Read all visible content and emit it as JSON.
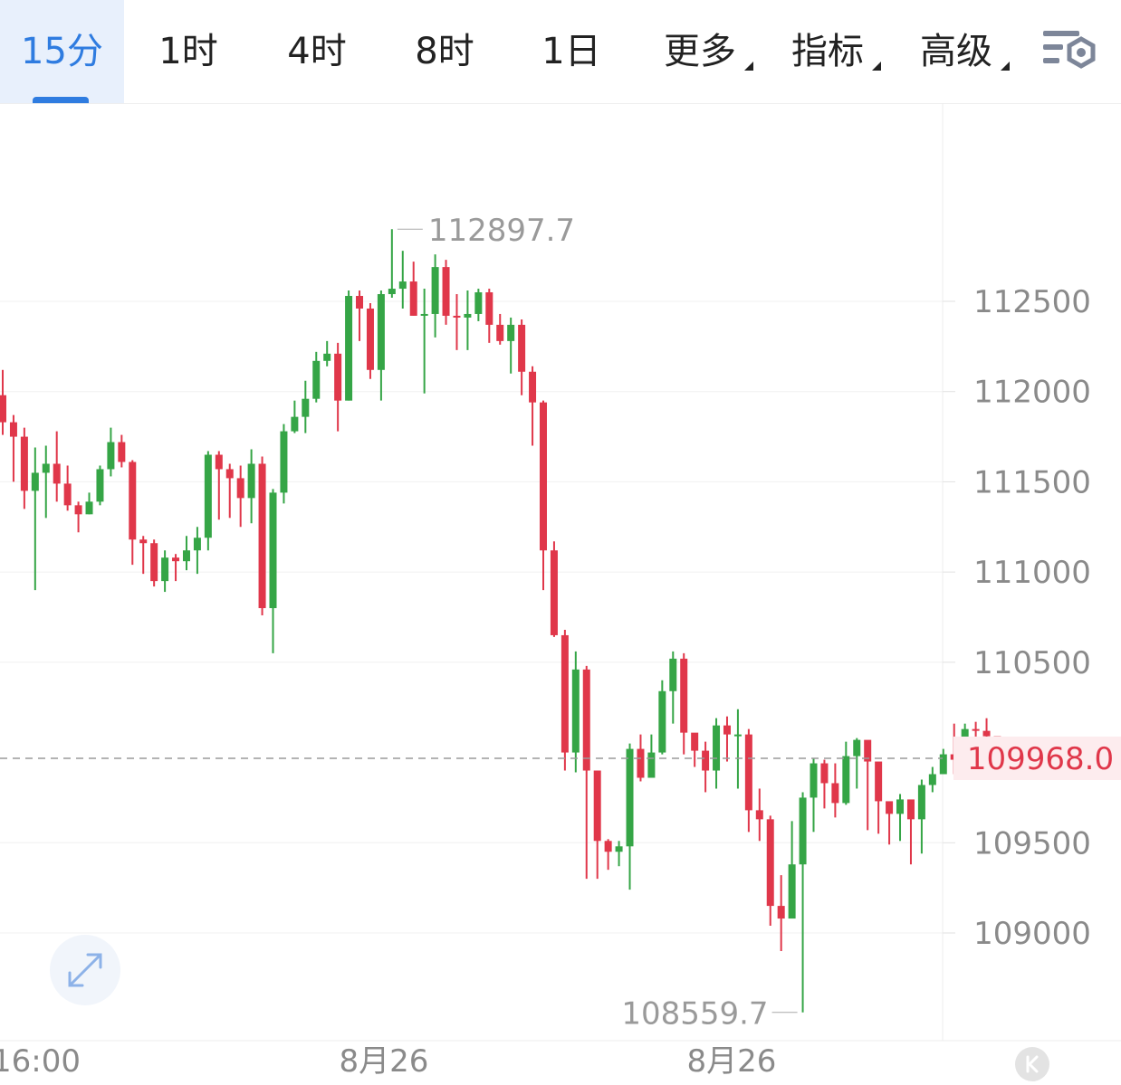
{
  "tabs": {
    "m15": "15分",
    "h1": "1时",
    "h4": "4时",
    "h8": "8时",
    "d1": "1日",
    "more": "更多",
    "indicators": "指标",
    "advanced": "高级"
  },
  "colors": {
    "up": "#35a546",
    "down": "#e0374a",
    "accent": "#2f7ce0",
    "last_price": "#e0374a"
  },
  "icons": {
    "settings": "chart-settings-icon",
    "expand": "expand-icon",
    "k_badge": "kline-badge-icon"
  },
  "chart_data": {
    "type": "candlestick",
    "interval": "15分",
    "yticks": [
      109000,
      109500,
      110000,
      110500,
      111000,
      111500,
      112000,
      112500
    ],
    "ytick_labels": [
      "109000",
      "109500",
      "110500",
      "111000",
      "111500",
      "112000",
      "112500"
    ],
    "ylim": [
      108400,
      113900
    ],
    "x_labels": [
      "16:00",
      "8月26",
      "8月26"
    ],
    "high_label": "112897.7",
    "low_label": "108559.7",
    "last_price": "109968.0",
    "candles": [
      [
        111980,
        111830,
        112120,
        111760
      ],
      [
        111830,
        111750,
        111870,
        111500
      ],
      [
        111750,
        111450,
        111800,
        111350
      ],
      [
        111450,
        111550,
        111690,
        110900
      ],
      [
        111550,
        111600,
        111700,
        111300
      ],
      [
        111600,
        111490,
        111780,
        111390
      ],
      [
        111490,
        111370,
        111590,
        111340
      ],
      [
        111370,
        111320,
        111390,
        111220
      ],
      [
        111320,
        111390,
        111440,
        111320
      ],
      [
        111390,
        111570,
        111590,
        111370
      ],
      [
        111570,
        111720,
        111800,
        111530
      ],
      [
        111720,
        111610,
        111760,
        111580
      ],
      [
        111610,
        111180,
        111620,
        111040
      ],
      [
        111180,
        111160,
        111200,
        110990
      ],
      [
        111160,
        110950,
        111180,
        110920
      ],
      [
        110950,
        111080,
        111120,
        110890
      ],
      [
        111080,
        111060,
        111100,
        110950
      ],
      [
        111060,
        111120,
        111200,
        111010
      ],
      [
        111120,
        111190,
        111250,
        110990
      ],
      [
        111190,
        111650,
        111670,
        111120
      ],
      [
        111650,
        111570,
        111670,
        111290
      ],
      [
        111570,
        111520,
        111600,
        111300
      ],
      [
        111520,
        111410,
        111590,
        111250
      ],
      [
        111410,
        111600,
        111680,
        111270
      ],
      [
        111600,
        110800,
        111640,
        110760
      ],
      [
        110800,
        111440,
        111460,
        110550
      ],
      [
        111440,
        111780,
        111820,
        111380
      ],
      [
        111780,
        111860,
        111950,
        111770
      ],
      [
        111860,
        111960,
        112060,
        111770
      ],
      [
        111960,
        112170,
        112220,
        111940
      ],
      [
        112170,
        112210,
        112280,
        112140
      ],
      [
        112210,
        111950,
        112270,
        111780
      ],
      [
        111950,
        112530,
        112560,
        111950
      ],
      [
        112530,
        112460,
        112560,
        112280
      ],
      [
        112460,
        112120,
        112490,
        112070
      ],
      [
        112120,
        112540,
        112560,
        111950
      ],
      [
        112540,
        112570,
        112900,
        112520
      ],
      [
        112570,
        112610,
        112780,
        112460
      ],
      [
        112610,
        112420,
        112720,
        112420
      ],
      [
        112420,
        112430,
        112570,
        111990
      ],
      [
        112430,
        112690,
        112760,
        112300
      ],
      [
        112690,
        112420,
        112730,
        112370
      ],
      [
        112420,
        112410,
        112540,
        112230
      ],
      [
        112410,
        112430,
        112560,
        112230
      ],
      [
        112430,
        112550,
        112570,
        112390
      ],
      [
        112550,
        112370,
        112570,
        112270
      ],
      [
        112370,
        112280,
        112430,
        112260
      ],
      [
        112280,
        112370,
        112410,
        112100
      ],
      [
        112370,
        112110,
        112400,
        111980
      ],
      [
        112110,
        111940,
        112140,
        111700
      ],
      [
        111940,
        111120,
        111950,
        110900
      ],
      [
        111120,
        110650,
        111170,
        110640
      ],
      [
        110650,
        110000,
        110680,
        109900
      ],
      [
        110000,
        110460,
        110560,
        109890
      ],
      [
        110460,
        109900,
        110480,
        109300
      ],
      [
        109900,
        109510,
        109900,
        109300
      ],
      [
        109510,
        109450,
        109520,
        109350
      ],
      [
        109450,
        109480,
        109510,
        109370
      ],
      [
        109480,
        110020,
        110050,
        109240
      ],
      [
        110020,
        109860,
        110100,
        109840
      ],
      [
        109860,
        110000,
        110100,
        109860
      ],
      [
        110000,
        110340,
        110400,
        109990
      ],
      [
        110340,
        110520,
        110560,
        110160
      ],
      [
        110520,
        110110,
        110550,
        109990
      ],
      [
        110110,
        110010,
        110080,
        109920
      ],
      [
        110010,
        109900,
        110060,
        109780
      ],
      [
        109900,
        110150,
        110190,
        109800
      ],
      [
        110150,
        110100,
        110200,
        109950
      ],
      [
        110100,
        110100,
        110240,
        109800
      ],
      [
        110100,
        109680,
        110130,
        109560
      ],
      [
        109680,
        109630,
        109800,
        109510
      ],
      [
        109630,
        109150,
        109650,
        109040
      ],
      [
        109150,
        109080,
        109320,
        108900
      ],
      [
        109080,
        109380,
        109620,
        109080
      ],
      [
        109380,
        109750,
        109780,
        108560
      ],
      [
        109750,
        109940,
        109970,
        109560
      ],
      [
        109940,
        109830,
        109960,
        109690
      ],
      [
        109830,
        109720,
        109940,
        109640
      ],
      [
        109720,
        109980,
        110060,
        109710
      ],
      [
        109980,
        110070,
        110080,
        109800
      ],
      [
        110070,
        109950,
        109970,
        109570
      ],
      [
        109950,
        109730,
        109820,
        109550
      ],
      [
        109730,
        109660,
        109720,
        109490
      ],
      [
        109660,
        109740,
        109770,
        109510
      ],
      [
        109740,
        109630,
        109690,
        109380
      ],
      [
        109630,
        109820,
        109850,
        109440
      ],
      [
        109820,
        109880,
        109920,
        109780
      ],
      [
        109880,
        109990,
        110020,
        109880
      ],
      [
        109990,
        109960,
        110160,
        109880
      ],
      [
        109960,
        110130,
        110160,
        109880
      ],
      [
        110130,
        110120,
        110170,
        109960
      ],
      [
        110120,
        110090,
        110190,
        109910
      ],
      [
        110090,
        109968,
        110040,
        109920
      ]
    ]
  }
}
